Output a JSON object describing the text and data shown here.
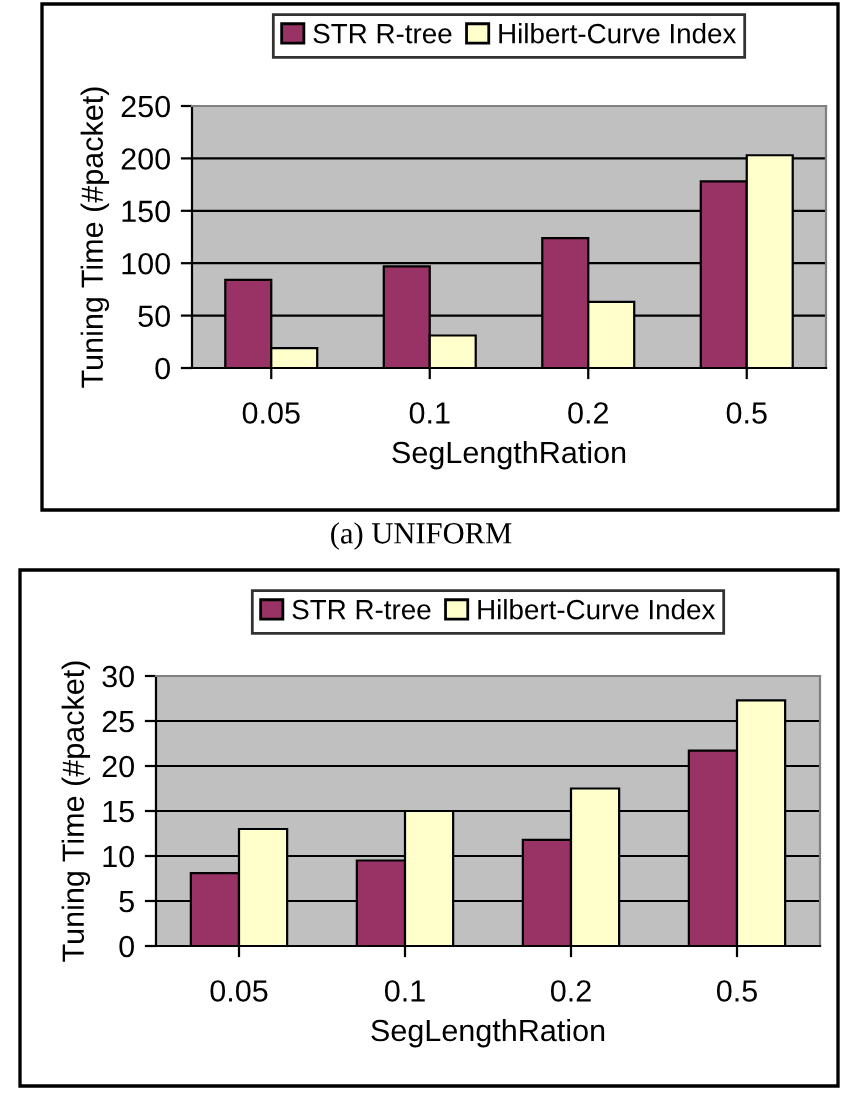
{
  "chart_data": [
    {
      "type": "bar",
      "xlabel": "SegLengthRation",
      "ylabel": "Tuning Time (#packet)",
      "categories": [
        "0.05",
        "0.1",
        "0.2",
        "0.5"
      ],
      "series": [
        {
          "name": "STR R-tree",
          "color": "#993366",
          "values": [
            84,
            97,
            124,
            178
          ]
        },
        {
          "name": "Hilbert-Curve Index",
          "color": "#ffffcc",
          "values": [
            19,
            31,
            63,
            203
          ]
        }
      ],
      "ylim": [
        0,
        250
      ],
      "yticks": [
        0,
        50,
        100,
        150,
        200,
        250
      ],
      "grid": "y",
      "legend": "top",
      "annotations": [
        "(a) UNIFORM"
      ]
    },
    {
      "type": "bar",
      "xlabel": "SegLengthRation",
      "ylabel": "Tuning Time (#packet)",
      "categories": [
        "0.05",
        "0.1",
        "0.2",
        "0.5"
      ],
      "series": [
        {
          "name": "STR R-tree",
          "color": "#993366",
          "values": [
            8.1,
            9.5,
            11.8,
            21.7
          ]
        },
        {
          "name": "Hilbert-Curve Index",
          "color": "#ffffcc",
          "values": [
            13,
            15,
            17.5,
            27.3
          ]
        }
      ],
      "ylim": [
        0,
        30
      ],
      "yticks": [
        0,
        5,
        10,
        15,
        20,
        25,
        30
      ],
      "grid": "y",
      "legend": "top"
    }
  ]
}
